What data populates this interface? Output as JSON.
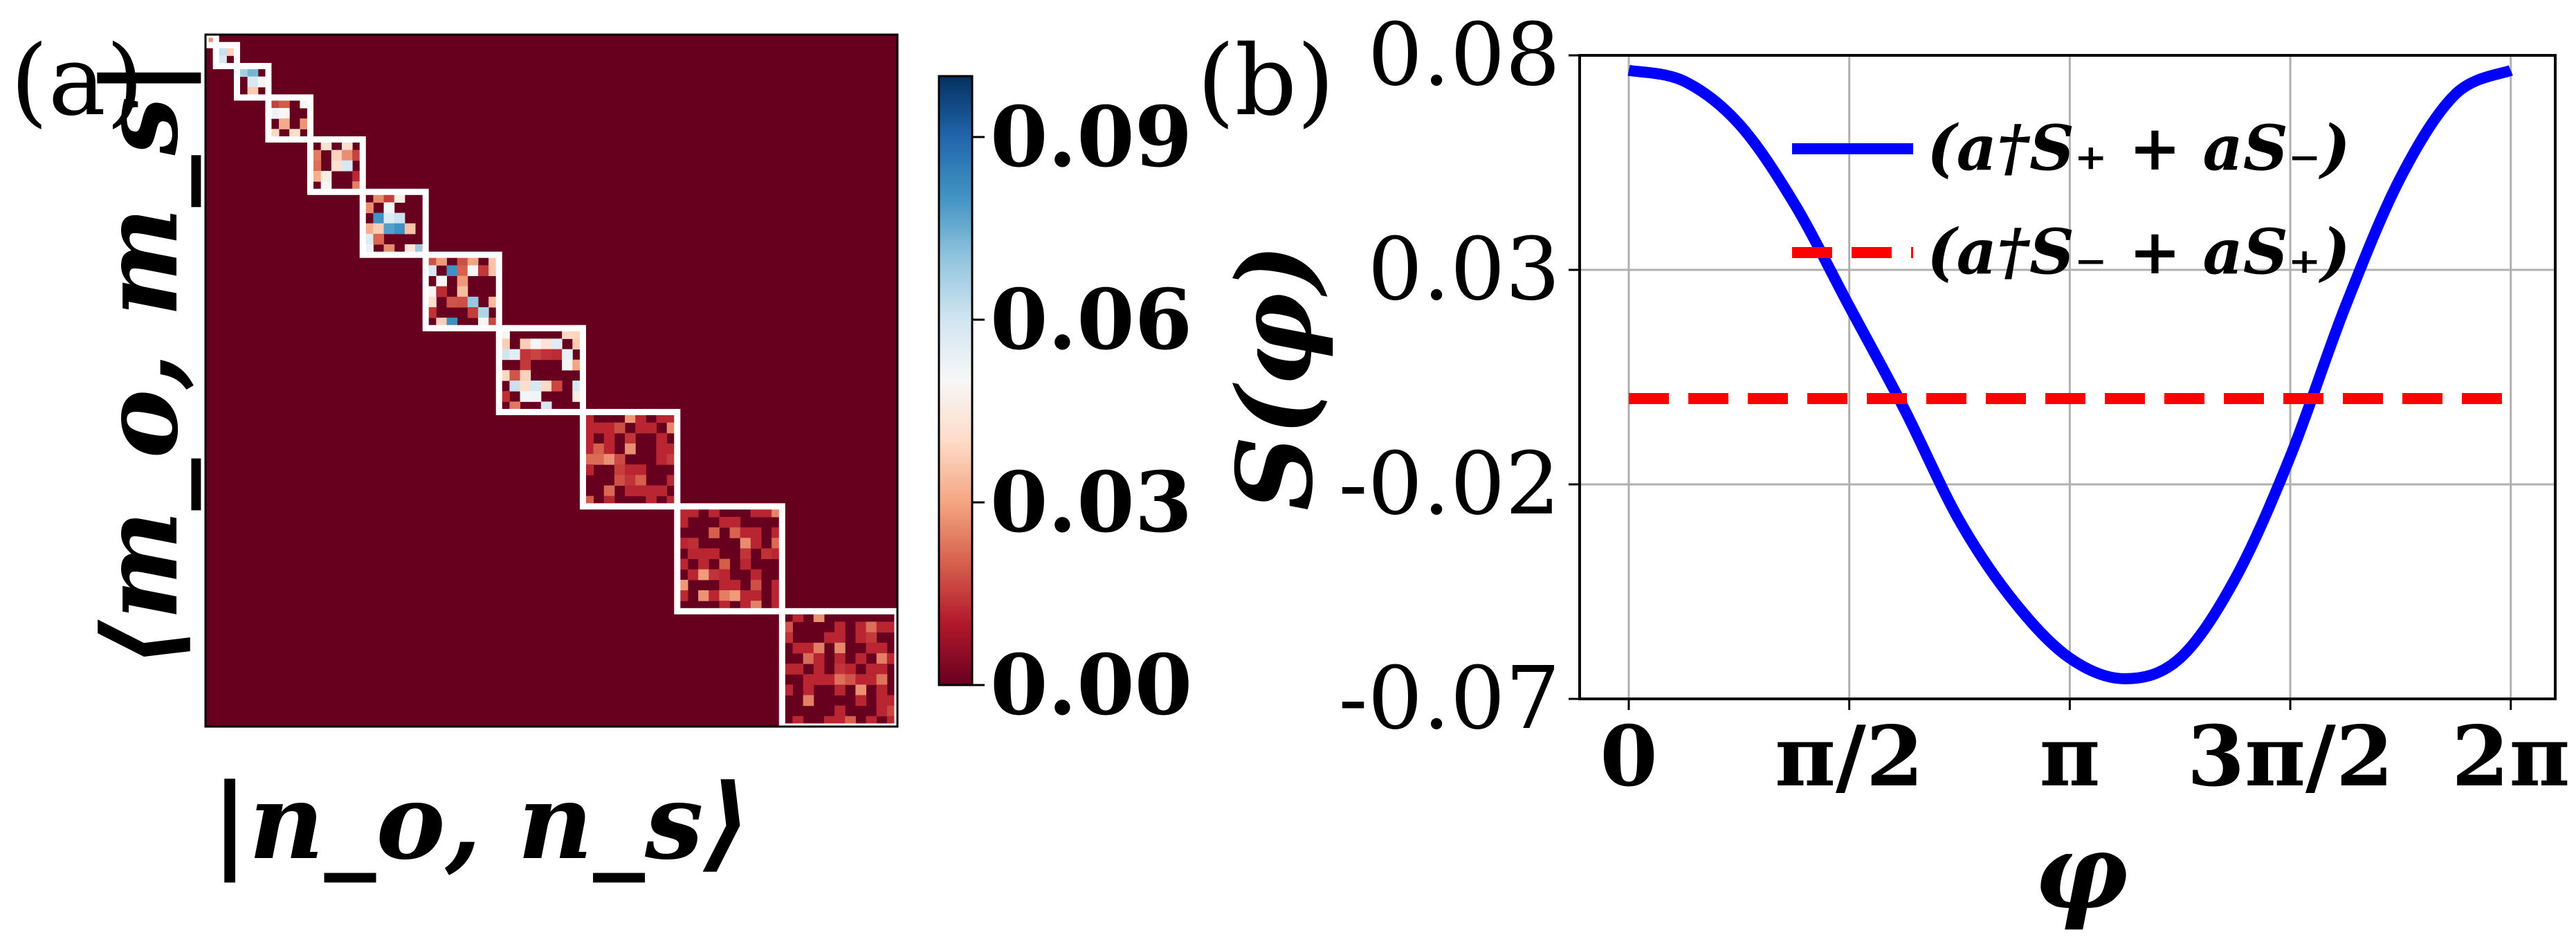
{
  "chart_data": [
    {
      "type": "heatmap",
      "panel_label": "(a)",
      "xlabel": "|n_o, n_s⟩",
      "ylabel": "⟨m_o, m_s|",
      "colorbar": {
        "ticks": [
          "0.09",
          "0.06",
          "0.03",
          "0.00"
        ],
        "tick_values": [
          0.09,
          0.06,
          0.03,
          0.0
        ],
        "range": [
          0.0,
          0.1
        ],
        "colormap": [
          "#67001f",
          "#b2182b",
          "#d6604d",
          "#f4a582",
          "#fddbc7",
          "#f7f7f7",
          "#d1e5f0",
          "#92c5de",
          "#4393c3",
          "#2166ac",
          "#053061"
        ]
      },
      "grid_size": 66,
      "block_sizes": [
        1,
        2,
        3,
        4,
        5,
        6,
        7,
        8,
        9,
        10,
        11
      ],
      "background_value": 0.0,
      "block_outline_color": "#ffffff"
    },
    {
      "type": "line",
      "panel_label": "(b)",
      "xlabel": "φ",
      "ylabel": "S(φ)",
      "x_ticks": [
        "0",
        "π/2",
        "π",
        "3π/2",
        "2π"
      ],
      "x_tick_values": [
        0,
        1.5708,
        3.1416,
        4.7124,
        6.2832
      ],
      "y_ticks": [
        "0.08",
        "0.03",
        "-0.02",
        "-0.07"
      ],
      "y_tick_values": [
        0.08,
        0.03,
        -0.02,
        -0.07
      ],
      "xlim": [
        -0.35,
        6.6
      ],
      "ylim": [
        -0.07,
        0.08
      ],
      "grid": true,
      "legend_placement": "top-right",
      "series": [
        {
          "name": "(a†S₊ + aS₋)",
          "style": "solid",
          "color": "#0000ff",
          "x": [
            0,
            0.3927,
            0.7854,
            1.1781,
            1.5708,
            1.9635,
            2.3562,
            2.7489,
            3.1416,
            3.5343,
            3.927,
            4.3197,
            4.7124,
            5.1051,
            5.4978,
            5.8905,
            6.2832
          ],
          "y": [
            0.0765,
            0.074,
            0.064,
            0.0455,
            0.0215,
            -0.0025,
            -0.0285,
            -0.0475,
            -0.0605,
            -0.0653,
            -0.0605,
            -0.042,
            -0.0135,
            0.0215,
            0.0515,
            0.071,
            0.0765
          ]
        },
        {
          "name": "(a†S₋ + aS₊)",
          "style": "dashed",
          "color": "#ff0000",
          "x": [
            0,
            6.2832
          ],
          "y": [
            0.0,
            0.0
          ]
        }
      ]
    }
  ]
}
